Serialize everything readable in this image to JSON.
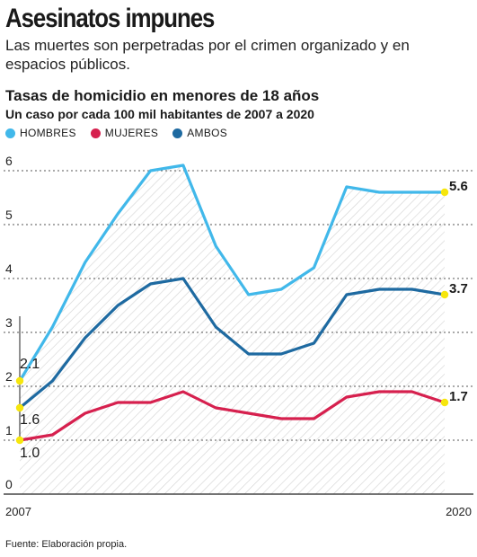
{
  "header": {
    "title": "Asesinatos impunes",
    "subtitle": "Las muertes son perpetradas por el crimen organizado y en espacios públicos."
  },
  "footer": {
    "source": "Fuente: Elaboración propia."
  },
  "colors": {
    "hombres": "#41b8ea",
    "mujeres": "#d6204e",
    "ambos": "#1e6aa1",
    "endpoint": "#f6e60d",
    "grid": "#555555",
    "hatch": "#d2d2d2"
  },
  "chart_data": {
    "type": "line",
    "title": "Tasas de homicidio en menores de 18 años",
    "subtitle": "Un caso por cada 100 mil habitantes de 2007 a 2020",
    "xlabel": "",
    "ylabel": "",
    "x": [
      2007,
      2008,
      2009,
      2010,
      2011,
      2012,
      2013,
      2014,
      2015,
      2016,
      2017,
      2018,
      2019,
      2020
    ],
    "x_tick_labels": [
      "2007",
      "2020"
    ],
    "ylim": [
      0,
      6
    ],
    "y_ticks": [
      "0",
      "1",
      "2",
      "3",
      "4",
      "5",
      "6"
    ],
    "grid": true,
    "legend_position": "top-left",
    "series": [
      {
        "key": "hombres",
        "name": "HOMBRES",
        "values": [
          2.1,
          3.1,
          4.3,
          5.2,
          6.0,
          6.1,
          4.6,
          3.7,
          3.8,
          4.2,
          5.7,
          5.6,
          5.6,
          5.6
        ],
        "start_label": "2.1",
        "end_label": "5.6"
      },
      {
        "key": "mujeres",
        "name": "MUJERES",
        "values": [
          1.0,
          1.1,
          1.5,
          1.7,
          1.7,
          1.9,
          1.6,
          1.5,
          1.4,
          1.4,
          1.8,
          1.9,
          1.9,
          1.7
        ],
        "start_label": "1.0",
        "end_label": "1.7"
      },
      {
        "key": "ambos",
        "name": "AMBOS",
        "values": [
          1.6,
          2.1,
          2.9,
          3.5,
          3.9,
          4.0,
          3.1,
          2.6,
          2.6,
          2.8,
          3.7,
          3.8,
          3.8,
          3.7
        ],
        "start_label": "1.6",
        "end_label": "3.7"
      }
    ]
  }
}
